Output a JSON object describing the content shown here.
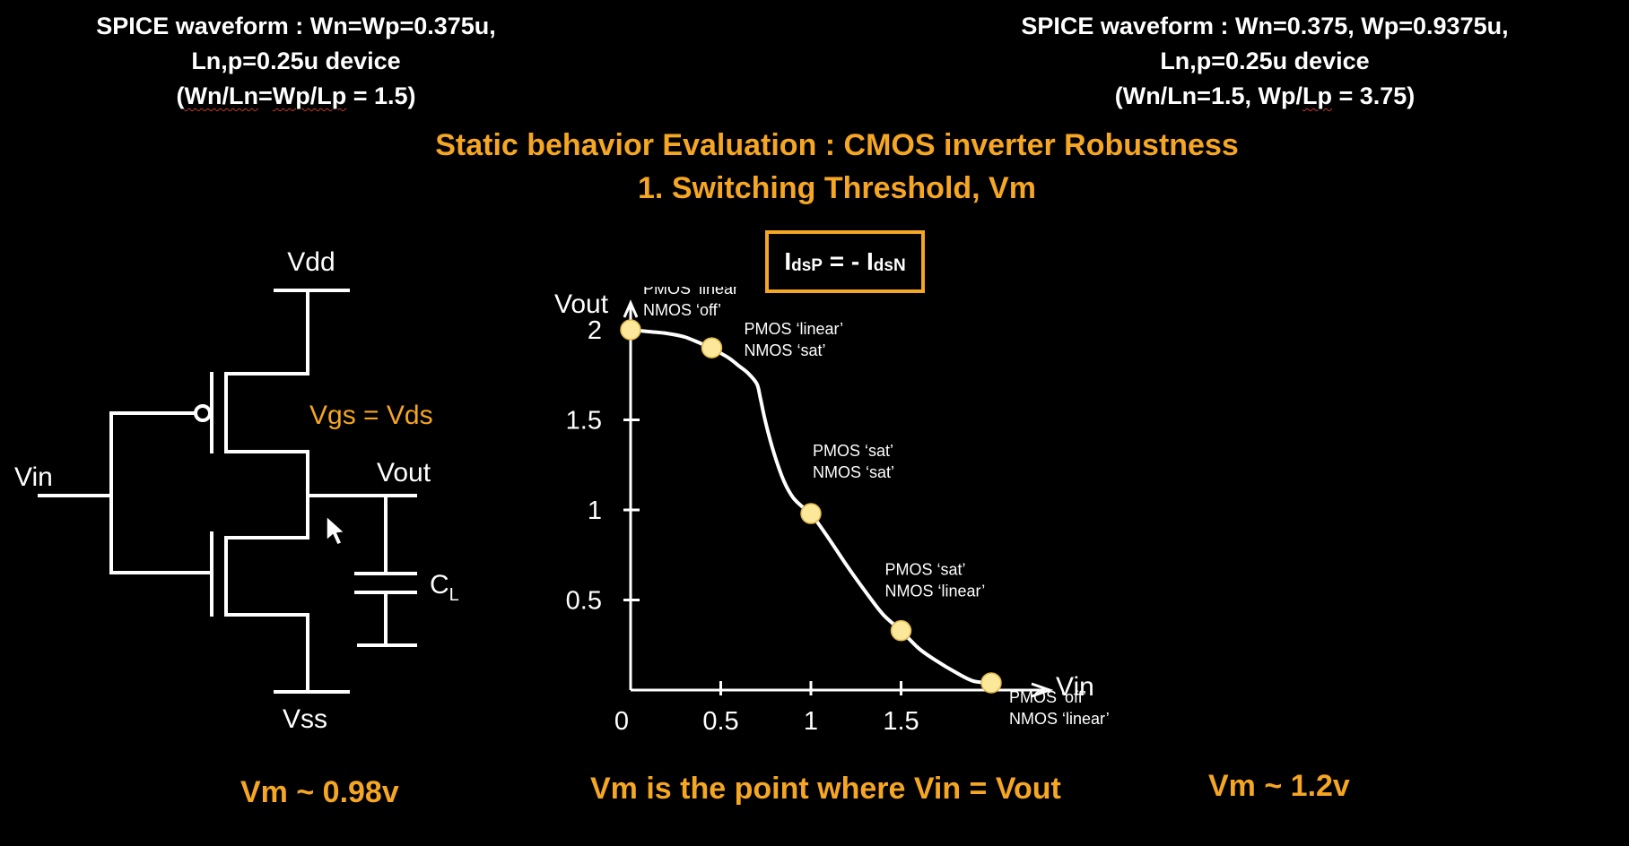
{
  "header_left": {
    "line1": "SPICE waveform : Wn=Wp=0.375u,",
    "line2": "Ln,p=0.25u device",
    "line3_open": "(",
    "line3_a": "Wn/Ln",
    "line3_eq": "=",
    "line3_b": "Wp/Lp",
    "line3_close": " = 1.5)"
  },
  "header_right": {
    "line1": "SPICE waveform : Wn=0.375, Wp=0.9375u,",
    "line2": "Ln,p=0.25u device",
    "line3_pre": "(Wn/Ln=1.5, Wp/",
    "line3_lp": "Lp",
    "line3_post": " = 3.75)"
  },
  "title": {
    "line1": "Static behavior Evaluation : CMOS inverter Robustness",
    "line2": "1. Switching Threshold, Vm"
  },
  "equation": {
    "I1": "I",
    "sub1": "dsP",
    "mid": " = - I",
    "sub2": "dsN"
  },
  "circuit": {
    "vdd": "Vdd",
    "vss": "Vss",
    "vin": "Vin",
    "vout": "Vout",
    "cl": "C",
    "cl_sub": "L",
    "vgs_vds": "Vgs = Vds"
  },
  "chart_data": {
    "type": "line",
    "xlabel": "Vin",
    "ylabel": "Vout",
    "x_ticks": [
      "0",
      "0.5",
      "1",
      "1.5"
    ],
    "y_ticks": [
      "0.5",
      "1",
      "1.5",
      "2"
    ],
    "xlim": [
      0,
      2.5
    ],
    "ylim": [
      0,
      2.5
    ],
    "x": [
      0,
      0.1,
      0.2,
      0.3,
      0.4,
      0.45,
      0.5,
      0.55,
      0.6,
      0.65,
      0.7,
      0.72,
      0.75,
      0.8,
      0.85,
      0.9,
      0.95,
      1.0,
      1.1,
      1.2,
      1.3,
      1.4,
      1.5,
      1.6,
      1.7,
      1.8,
      1.9,
      2.0
    ],
    "y": [
      2.0,
      1.99,
      1.98,
      1.96,
      1.92,
      1.9,
      1.87,
      1.84,
      1.8,
      1.76,
      1.7,
      1.62,
      1.48,
      1.3,
      1.16,
      1.07,
      1.02,
      0.98,
      0.84,
      0.69,
      0.55,
      0.42,
      0.33,
      0.23,
      0.16,
      0.1,
      0.05,
      0.04
    ],
    "points": [
      {
        "x": 0,
        "y": 2.0,
        "label1": "PMOS ‘linear’",
        "label2": "NMOS ‘off’"
      },
      {
        "x": 0.45,
        "y": 1.9,
        "label1": "PMOS ‘linear’",
        "label2": "NMOS ‘sat’"
      },
      {
        "x": 1.0,
        "y": 0.98,
        "label1": "PMOS ‘sat’",
        "label2": "NMOS ‘sat’"
      },
      {
        "x": 1.5,
        "y": 0.33,
        "label1": "PMOS ‘sat’",
        "label2": "NMOS ‘linear’"
      },
      {
        "x": 2.0,
        "y": 0.04,
        "label1": "PMOS ‘off’",
        "label2": "NMOS ‘linear’"
      }
    ]
  },
  "footer": {
    "left": "Vm ~ 0.98v",
    "center": "Vm is the point where Vin = Vout",
    "right": "Vm ~ 1.2v"
  },
  "colors": {
    "accent": "#f5a623",
    "point": "#fce89a",
    "line": "#ffffff",
    "bg": "#000000"
  }
}
